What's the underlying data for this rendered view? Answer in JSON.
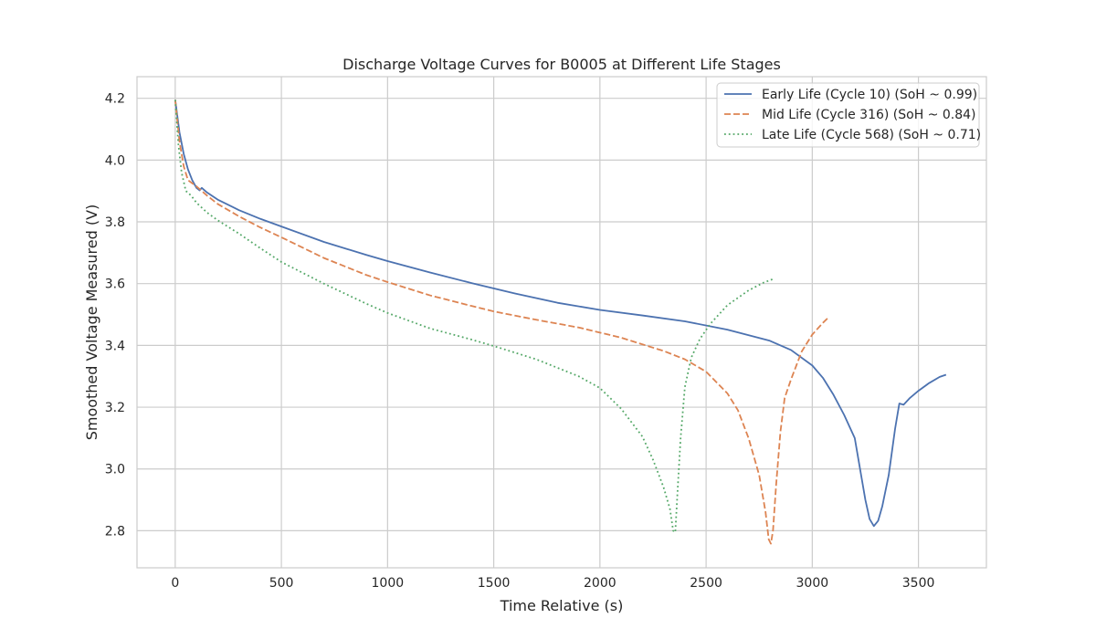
{
  "chart_data": {
    "type": "line",
    "title": "Discharge Voltage Curves for B0005 at Different Life Stages",
    "xlabel": "Time Relative (s)",
    "ylabel": "Smoothed Voltage Measured (V)",
    "xlim": [
      -180,
      3820
    ],
    "ylim": [
      2.68,
      4.27
    ],
    "xticks": [
      0,
      500,
      1000,
      1500,
      2000,
      2500,
      3000,
      3500
    ],
    "yticks": [
      2.8,
      3.0,
      3.2,
      3.4,
      3.6,
      3.8,
      4.0,
      4.2
    ],
    "xtick_labels": [
      "0",
      "500",
      "1000",
      "1500",
      "2000",
      "2500",
      "3000",
      "3500"
    ],
    "ytick_labels": [
      "2.8",
      "3.0",
      "3.2",
      "3.4",
      "3.6",
      "3.8",
      "4.0",
      "4.2"
    ],
    "grid": true,
    "legend_position": "top-right",
    "series": [
      {
        "name": "Early Life (Cycle 10) (SoH ~ 0.99)",
        "color": "#4c72b0",
        "dash": "solid",
        "points": [
          [
            0,
            4.195
          ],
          [
            20,
            4.09
          ],
          [
            40,
            4.02
          ],
          [
            60,
            3.97
          ],
          [
            80,
            3.935
          ],
          [
            100,
            3.91
          ],
          [
            115,
            3.902
          ],
          [
            125,
            3.91
          ],
          [
            150,
            3.895
          ],
          [
            200,
            3.872
          ],
          [
            300,
            3.838
          ],
          [
            400,
            3.81
          ],
          [
            500,
            3.785
          ],
          [
            700,
            3.735
          ],
          [
            900,
            3.693
          ],
          [
            1000,
            3.673
          ],
          [
            1200,
            3.636
          ],
          [
            1400,
            3.601
          ],
          [
            1600,
            3.568
          ],
          [
            1800,
            3.538
          ],
          [
            2000,
            3.515
          ],
          [
            2200,
            3.497
          ],
          [
            2400,
            3.478
          ],
          [
            2600,
            3.451
          ],
          [
            2800,
            3.415
          ],
          [
            2900,
            3.385
          ],
          [
            3000,
            3.335
          ],
          [
            3050,
            3.295
          ],
          [
            3100,
            3.24
          ],
          [
            3150,
            3.175
          ],
          [
            3200,
            3.1
          ],
          [
            3230,
            2.98
          ],
          [
            3250,
            2.9
          ],
          [
            3270,
            2.838
          ],
          [
            3290,
            2.815
          ],
          [
            3310,
            2.832
          ],
          [
            3330,
            2.88
          ],
          [
            3360,
            2.98
          ],
          [
            3390,
            3.13
          ],
          [
            3410,
            3.212
          ],
          [
            3430,
            3.208
          ],
          [
            3460,
            3.23
          ],
          [
            3500,
            3.253
          ],
          [
            3550,
            3.278
          ],
          [
            3600,
            3.298
          ],
          [
            3630,
            3.305
          ]
        ]
      },
      {
        "name": "Mid Life (Cycle 316) (SoH ~ 0.84)",
        "color": "#dd8452",
        "dash": "dashed",
        "points": [
          [
            0,
            4.195
          ],
          [
            20,
            4.06
          ],
          [
            40,
            3.98
          ],
          [
            60,
            3.935
          ],
          [
            80,
            3.925
          ],
          [
            100,
            3.915
          ],
          [
            150,
            3.885
          ],
          [
            200,
            3.858
          ],
          [
            300,
            3.818
          ],
          [
            400,
            3.782
          ],
          [
            500,
            3.75
          ],
          [
            700,
            3.683
          ],
          [
            900,
            3.628
          ],
          [
            1000,
            3.605
          ],
          [
            1200,
            3.562
          ],
          [
            1400,
            3.527
          ],
          [
            1500,
            3.51
          ],
          [
            1700,
            3.483
          ],
          [
            1900,
            3.458
          ],
          [
            2100,
            3.425
          ],
          [
            2300,
            3.382
          ],
          [
            2400,
            3.355
          ],
          [
            2500,
            3.315
          ],
          [
            2600,
            3.245
          ],
          [
            2650,
            3.19
          ],
          [
            2700,
            3.1
          ],
          [
            2750,
            2.98
          ],
          [
            2780,
            2.86
          ],
          [
            2795,
            2.772
          ],
          [
            2805,
            2.758
          ],
          [
            2815,
            2.8
          ],
          [
            2830,
            2.95
          ],
          [
            2850,
            3.12
          ],
          [
            2870,
            3.23
          ],
          [
            2900,
            3.29
          ],
          [
            2950,
            3.38
          ],
          [
            3000,
            3.435
          ],
          [
            3050,
            3.473
          ],
          [
            3080,
            3.493
          ]
        ]
      },
      {
        "name": "Late Life (Cycle 568) (SoH ~ 0.71)",
        "color": "#55a868",
        "dash": "dotted",
        "points": [
          [
            0,
            4.195
          ],
          [
            15,
            4.05
          ],
          [
            30,
            3.96
          ],
          [
            50,
            3.9
          ],
          [
            75,
            3.885
          ],
          [
            100,
            3.862
          ],
          [
            150,
            3.83
          ],
          [
            200,
            3.805
          ],
          [
            300,
            3.762
          ],
          [
            400,
            3.715
          ],
          [
            500,
            3.67
          ],
          [
            700,
            3.6
          ],
          [
            900,
            3.535
          ],
          [
            1000,
            3.505
          ],
          [
            1200,
            3.455
          ],
          [
            1400,
            3.418
          ],
          [
            1500,
            3.398
          ],
          [
            1700,
            3.355
          ],
          [
            1900,
            3.3
          ],
          [
            2000,
            3.262
          ],
          [
            2100,
            3.195
          ],
          [
            2200,
            3.105
          ],
          [
            2250,
            3.03
          ],
          [
            2300,
            2.94
          ],
          [
            2330,
            2.87
          ],
          [
            2345,
            2.8
          ],
          [
            2355,
            2.795
          ],
          [
            2365,
            2.92
          ],
          [
            2380,
            3.1
          ],
          [
            2400,
            3.265
          ],
          [
            2430,
            3.36
          ],
          [
            2470,
            3.42
          ],
          [
            2520,
            3.47
          ],
          [
            2600,
            3.53
          ],
          [
            2700,
            3.578
          ],
          [
            2770,
            3.603
          ],
          [
            2820,
            3.616
          ]
        ]
      }
    ]
  }
}
